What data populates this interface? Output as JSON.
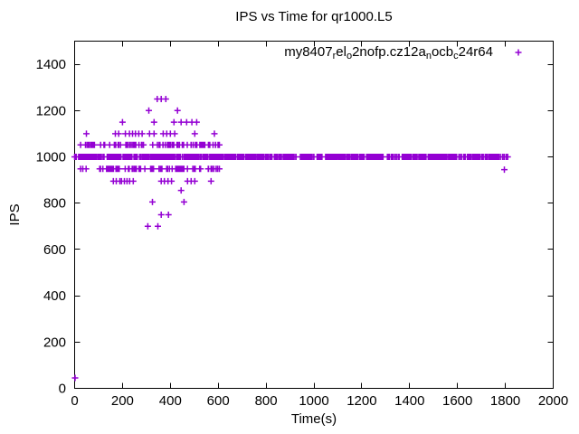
{
  "figure": {
    "background": "#ffffff"
  },
  "chart_data": {
    "type": "scatter",
    "title": "IPS vs Time for qr1000.L5",
    "xlabel": "Time(s)",
    "ylabel": "IPS",
    "xlim": [
      0,
      2000
    ],
    "ylim": [
      0,
      1500
    ],
    "xticks": [
      0,
      200,
      400,
      600,
      800,
      1000,
      1200,
      1400,
      1600,
      1800,
      2000
    ],
    "yticks": [
      0,
      200,
      400,
      600,
      800,
      1000,
      1200,
      1400
    ],
    "grid": false,
    "legend": {
      "position": "top-right-inside",
      "marker_shape": "plus",
      "label_segments": [
        {
          "text": "my8407",
          "sub": false
        },
        {
          "text": "r",
          "sub": true
        },
        {
          "text": "el",
          "sub": false
        },
        {
          "text": "o",
          "sub": true
        },
        {
          "text": "2nofp.cz12a",
          "sub": false
        },
        {
          "text": "n",
          "sub": true
        },
        {
          "text": "ocb",
          "sub": false
        },
        {
          "text": "c",
          "sub": true
        },
        {
          "text": "24r64",
          "sub": false
        }
      ]
    },
    "style": {
      "marker_color": "#9400D3",
      "marker_size": 7,
      "axis_color": "#000000",
      "text_color": "#000000",
      "tick_length": 6
    },
    "series": [
      {
        "seed": 1337,
        "points": [
          [
            2,
            45
          ],
          [
            345,
            1250
          ],
          [
            362,
            1250
          ],
          [
            381,
            1250
          ],
          [
            310,
            1200
          ],
          [
            430,
            1200
          ],
          [
            200,
            1150
          ],
          [
            332,
            1150
          ],
          [
            415,
            1150
          ],
          [
            445,
            1150
          ],
          [
            468,
            1150
          ],
          [
            490,
            1150
          ],
          [
            510,
            1150
          ],
          [
            49,
            1100
          ],
          [
            170,
            1100
          ],
          [
            184,
            1100
          ],
          [
            212,
            1100
          ],
          [
            229,
            1100
          ],
          [
            242,
            1100
          ],
          [
            254,
            1100
          ],
          [
            268,
            1100
          ],
          [
            282,
            1100
          ],
          [
            313,
            1100
          ],
          [
            332,
            1100
          ],
          [
            370,
            1100
          ],
          [
            385,
            1100
          ],
          [
            400,
            1100
          ],
          [
            418,
            1100
          ],
          [
            502,
            1100
          ],
          [
            584,
            1100
          ],
          [
            162,
            895
          ],
          [
            174,
            895
          ],
          [
            189,
            895
          ],
          [
            196,
            895
          ],
          [
            208,
            895
          ],
          [
            219,
            895
          ],
          [
            230,
            895
          ],
          [
            245,
            895
          ],
          [
            362,
            895
          ],
          [
            375,
            895
          ],
          [
            390,
            895
          ],
          [
            405,
            895
          ],
          [
            472,
            895
          ],
          [
            487,
            895
          ],
          [
            502,
            895
          ],
          [
            570,
            895
          ],
          [
            445,
            855
          ],
          [
            325,
            805
          ],
          [
            457,
            805
          ],
          [
            362,
            750
          ],
          [
            392,
            750
          ],
          [
            306,
            700
          ],
          [
            348,
            700
          ],
          [
            1796,
            945
          ]
        ],
        "dense_rows": [
          {
            "ips": 1000,
            "t_min": 0,
            "t_max": 1810,
            "count": 750,
            "jitter": 0
          },
          {
            "ips": 1052,
            "t_min": 25,
            "t_max": 605,
            "count": 90,
            "jitter": 0
          },
          {
            "ips": 948,
            "t_min": 25,
            "t_max": 605,
            "count": 85,
            "jitter": 0
          }
        ]
      }
    ]
  }
}
